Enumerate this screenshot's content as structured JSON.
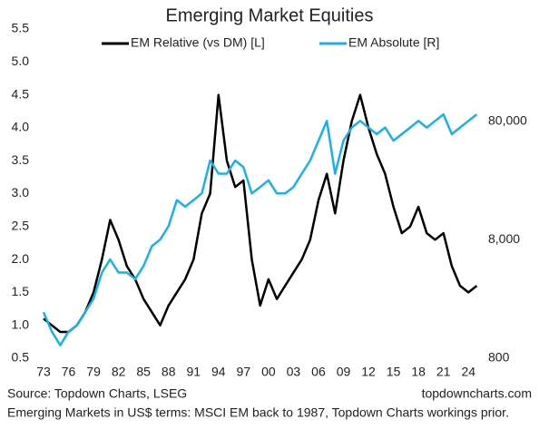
{
  "chart_data": {
    "type": "line",
    "title": "Emerging Market Equities",
    "source": "Source: Topdown Charts, LSEG",
    "website": "topdowncharts.com",
    "note": "Emerging Markets in US$ terms: MSCI EM back to 1987, Topdown Charts workings prior.",
    "x": [
      1973,
      1974,
      1975,
      1976,
      1977,
      1978,
      1979,
      1980,
      1981,
      1982,
      1983,
      1984,
      1985,
      1986,
      1987,
      1988,
      1989,
      1990,
      1991,
      1992,
      1993,
      1994,
      1995,
      1996,
      1997,
      1998,
      1999,
      2000,
      2001,
      2002,
      2003,
      2004,
      2005,
      2006,
      2007,
      2008,
      2009,
      2010,
      2011,
      2012,
      2013,
      2014,
      2015,
      2016,
      2017,
      2018,
      2019,
      2020,
      2021,
      2022,
      2023,
      2024,
      2025
    ],
    "series": [
      {
        "name": "EM Relative (vs DM) [L]",
        "color": "#000000",
        "axis": "y",
        "values": [
          1.1,
          1.0,
          0.9,
          0.9,
          1.0,
          1.2,
          1.5,
          2.0,
          2.6,
          2.3,
          1.9,
          1.7,
          1.4,
          1.2,
          1.0,
          1.3,
          1.5,
          1.7,
          2.0,
          2.7,
          3.0,
          4.5,
          3.5,
          3.1,
          3.2,
          2.0,
          1.3,
          1.7,
          1.4,
          1.6,
          1.8,
          2.0,
          2.3,
          2.9,
          3.3,
          2.7,
          3.5,
          4.1,
          4.5,
          4.0,
          3.6,
          3.3,
          2.8,
          2.4,
          2.5,
          2.8,
          2.4,
          2.3,
          2.4,
          1.9,
          1.6,
          1.5,
          1.6
        ]
      },
      {
        "name": "EM Absolute [R]",
        "color": "#1ab0e8",
        "axis": "y2",
        "values": [
          1960,
          1340,
          1030,
          1340,
          1520,
          1960,
          2540,
          4230,
          5460,
          4230,
          4230,
          3720,
          4810,
          7060,
          8020,
          10400,
          17300,
          15200,
          17300,
          19700,
          37300,
          28900,
          28900,
          37300,
          32800,
          19700,
          22300,
          25400,
          19700,
          19700,
          22300,
          28900,
          37300,
          54800,
          80500,
          28900,
          54800,
          70800,
          80500,
          70800,
          62300,
          70800,
          54800,
          62300,
          70800,
          80500,
          70800,
          80500,
          91500,
          62300,
          70800,
          80500,
          91500
        ]
      }
    ],
    "xlim": [
      1973,
      2025.5
    ],
    "xticks": [
      {
        "value": 1973,
        "label": "73"
      },
      {
        "value": 1976,
        "label": "76"
      },
      {
        "value": 1979,
        "label": "79"
      },
      {
        "value": 1982,
        "label": "82"
      },
      {
        "value": 1985,
        "label": "85"
      },
      {
        "value": 1988,
        "label": "88"
      },
      {
        "value": 1991,
        "label": "91"
      },
      {
        "value": 1994,
        "label": "94"
      },
      {
        "value": 1997,
        "label": "97"
      },
      {
        "value": 2000,
        "label": "00"
      },
      {
        "value": 2003,
        "label": "03"
      },
      {
        "value": 2006,
        "label": "06"
      },
      {
        "value": 2009,
        "label": "09"
      },
      {
        "value": 2012,
        "label": "12"
      },
      {
        "value": 2015,
        "label": "15"
      },
      {
        "value": 2018,
        "label": "18"
      },
      {
        "value": 2021,
        "label": "21"
      },
      {
        "value": 2024,
        "label": "24"
      }
    ],
    "ylim": [
      0.5,
      5.5
    ],
    "yticks": [
      0.5,
      {
        "value": 1,
        "label": "1.0"
      },
      1.5,
      {
        "value": 2,
        "label": "2.0"
      },
      2.5,
      {
        "value": 3,
        "label": "3.0"
      },
      3.5,
      {
        "value": 4,
        "label": "4.0"
      },
      4.5,
      {
        "value": 5,
        "label": "5.0"
      },
      5.5
    ],
    "y2lim": [
      800,
      480000
    ],
    "y2ticks": [
      800,
      {
        "value": 8000,
        "label": "8,000"
      },
      {
        "value": 80000,
        "label": "80,000"
      }
    ],
    "y2_log": true,
    "y2_tick_color": "#1ab0e8",
    "grid": false
  }
}
